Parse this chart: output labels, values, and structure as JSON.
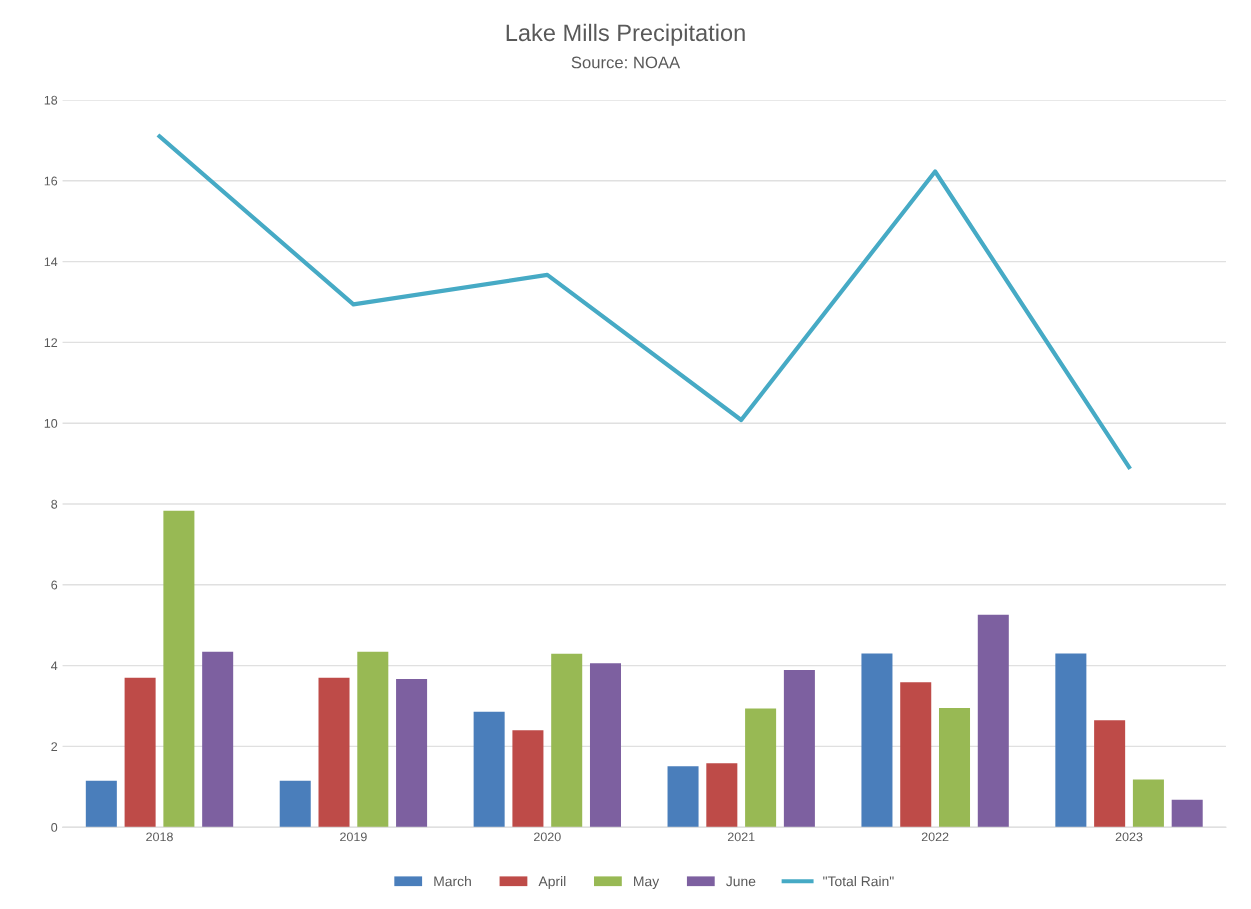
{
  "chart_data": {
    "type": "bar",
    "title": "Lake Mills Precipitation",
    "subtitle": "Source: NOAA",
    "categories": [
      "2018",
      "2019",
      "2020",
      "2021",
      "2022",
      "2023"
    ],
    "series": [
      {
        "name": "March",
        "color": "#4a7ebb",
        "values": [
          1.15,
          1.15,
          2.86,
          1.51,
          4.3,
          4.3
        ]
      },
      {
        "name": "April",
        "color": "#be4b48",
        "values": [
          3.7,
          3.7,
          2.4,
          1.58,
          3.59,
          2.65
        ]
      },
      {
        "name": "May",
        "color": "#98b954",
        "values": [
          7.83,
          4.34,
          4.29,
          2.94,
          2.95,
          1.18
        ]
      },
      {
        "name": "June",
        "color": "#7d60a0",
        "values": [
          4.34,
          3.67,
          4.06,
          3.89,
          5.26,
          0.68
        ]
      },
      {
        "name": "\"Total Rain\"",
        "type": "line",
        "color": "#46aac5",
        "values": [
          17.1,
          12.94,
          13.67,
          10.08,
          16.23,
          8.91
        ]
      }
    ],
    "ylim": [
      0,
      18
    ],
    "yticks": [
      0,
      2,
      4,
      6,
      8,
      10,
      12,
      14,
      16,
      18
    ],
    "grid": "y",
    "legend": "bottom"
  }
}
